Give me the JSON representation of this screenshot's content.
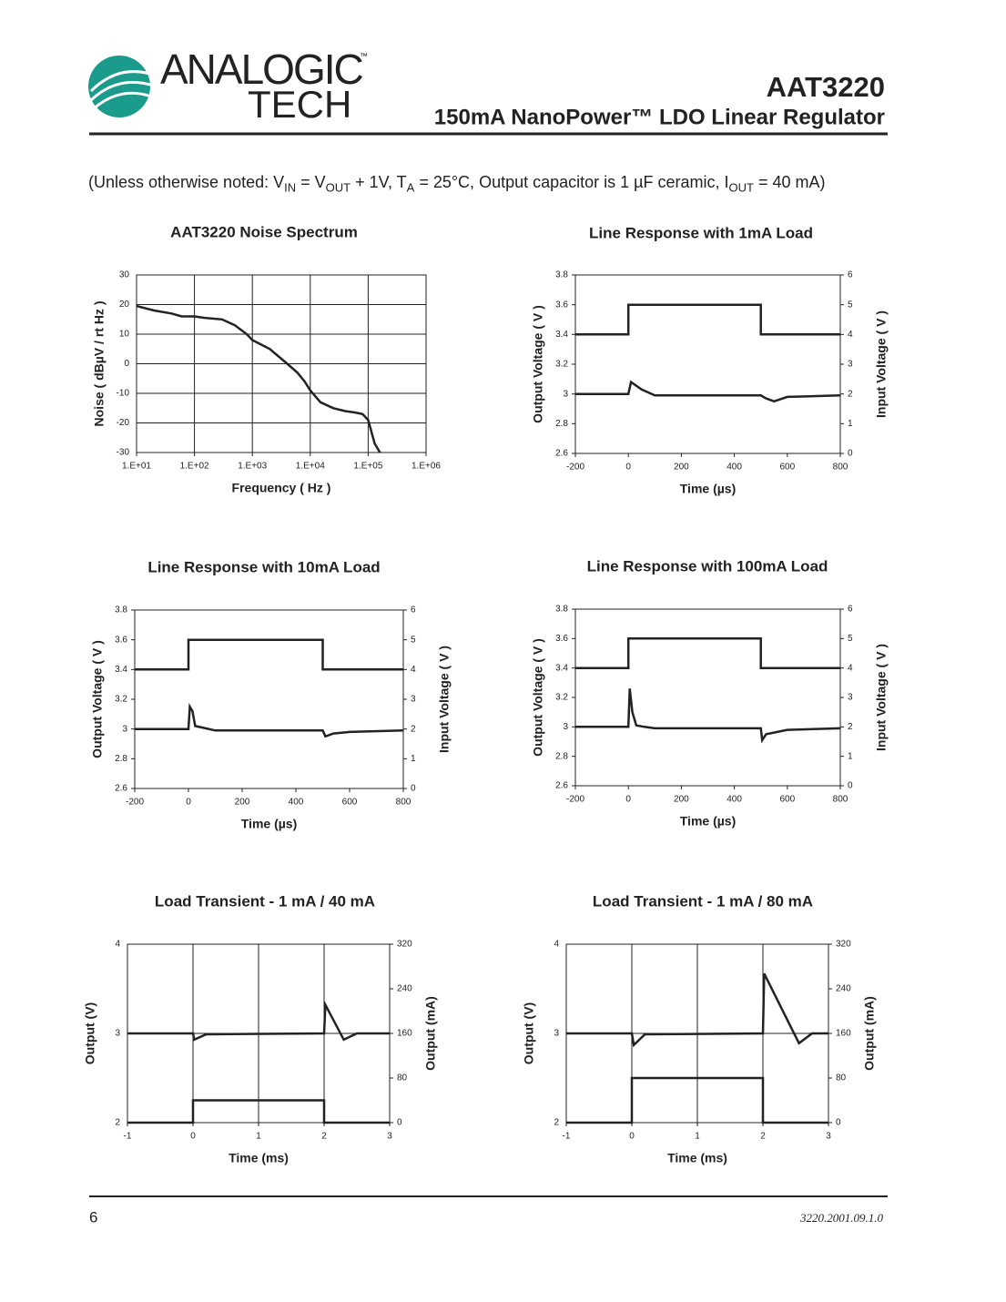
{
  "header": {
    "logo_top": "ANALOGIC",
    "logo_bottom": "TECH",
    "logo_tm": "™",
    "title": "AAT3220",
    "subtitle": "150mA NanoPower™ LDO Linear Regulator"
  },
  "note": [
    "(Unless otherwise noted: V",
    "IN",
    " = V",
    "OUT",
    " + 1V, T",
    "A",
    " = 25°C, Output capacitor is 1 µF ceramic, I",
    "OUT",
    " = 40 mA)"
  ],
  "chart_data": [
    {
      "type": "line",
      "title": "AAT3220 Noise Spectrum",
      "xlabel": "Frequency ( Hz )",
      "ylabel": "Noise ( dBµV / rt Hz )",
      "xscale": "log",
      "grid": true,
      "xlim": [
        10,
        1000000
      ],
      "xticks": [
        {
          "value": 10,
          "label": "1.E+01"
        },
        {
          "value": 100,
          "label": "1.E+02"
        },
        {
          "value": 1000,
          "label": "1.E+03"
        },
        {
          "value": 10000,
          "label": "1.E+04"
        },
        {
          "value": 100000,
          "label": "1.E+05"
        },
        {
          "value": 1000000,
          "label": "1.E+06"
        }
      ],
      "ylim": [
        -30,
        30
      ],
      "yticks": [
        -30,
        -20,
        -10,
        0,
        10,
        20,
        30
      ],
      "series": [
        {
          "color": "#222222",
          "x": [
            10,
            20,
            40,
            60,
            100,
            150,
            300,
            500,
            800,
            1000,
            2000,
            4000,
            6000,
            8000,
            10000,
            15000,
            25000,
            40000,
            60000,
            80000,
            100000,
            130000,
            160000
          ],
          "values": [
            19.5,
            18,
            17,
            16,
            16,
            15.5,
            15,
            13,
            10,
            8,
            5,
            0,
            -3,
            -6,
            -9,
            -13,
            -15,
            -16,
            -16.5,
            -17,
            -19,
            -27,
            -30
          ]
        }
      ]
    },
    {
      "type": "line",
      "title": "Line Response with 1mA Load",
      "xlabel": "Time (µs)",
      "ylabel": "Output Voltage ( V )",
      "y2label": "Input Voltage ( V )",
      "grid": false,
      "xlim": [
        -200,
        800
      ],
      "xticks": [
        -200,
        0,
        200,
        400,
        600,
        800
      ],
      "ylim": [
        2.6,
        3.8
      ],
      "yticks": [
        2.6,
        2.8,
        3,
        3.2,
        3.4,
        3.6,
        3.8
      ],
      "y2lim": [
        0,
        6
      ],
      "y2ticks": [
        0,
        1,
        2,
        3,
        4,
        5,
        6
      ],
      "series": [
        {
          "color": "#222222",
          "x": [
            -200,
            0,
            10,
            50,
            100,
            490,
            500,
            520,
            550,
            600,
            800
          ],
          "values": [
            3,
            3,
            3.08,
            3.03,
            2.99,
            2.99,
            2.99,
            2.97,
            2.95,
            2.98,
            2.99
          ]
        },
        {
          "color": "#222222",
          "axis": "y2",
          "x": [
            -200,
            0,
            0,
            500,
            500,
            800
          ],
          "values": [
            4,
            4,
            5,
            5,
            4,
            4
          ]
        }
      ]
    },
    {
      "type": "line",
      "title": "Line Response with 10mA  Load",
      "xlabel": "Time (µs)",
      "ylabel": "Output Voltage ( V )",
      "y2label": "Input Voltage ( V )",
      "grid": false,
      "xlim": [
        -200,
        800
      ],
      "xticks": [
        -200,
        0,
        200,
        400,
        600,
        800
      ],
      "ylim": [
        2.6,
        3.8
      ],
      "yticks": [
        2.6,
        2.8,
        3,
        3.2,
        3.4,
        3.6,
        3.8
      ],
      "y2lim": [
        0,
        6
      ],
      "y2ticks": [
        0,
        1,
        2,
        3,
        4,
        5,
        6
      ],
      "series": [
        {
          "color": "#222222",
          "x": [
            -200,
            0,
            5,
            15,
            25,
            50,
            100,
            490,
            500,
            510,
            540,
            600,
            800
          ],
          "values": [
            3,
            3,
            3.15,
            3.12,
            3.02,
            3.01,
            2.99,
            2.99,
            2.99,
            2.95,
            2.97,
            2.98,
            2.99
          ]
        },
        {
          "color": "#222222",
          "axis": "y2",
          "x": [
            -200,
            0,
            0,
            500,
            500,
            800
          ],
          "values": [
            4,
            4,
            5,
            5,
            4,
            4
          ]
        }
      ]
    },
    {
      "type": "line",
      "title": "Line Response with 100mA Load",
      "xlabel": "Time (µs)",
      "ylabel": "Output Voltage ( V )",
      "y2label": "Input Voltage ( V )",
      "grid": false,
      "xlim": [
        -200,
        800
      ],
      "xticks": [
        -200,
        0,
        200,
        400,
        600,
        800
      ],
      "ylim": [
        2.6,
        3.8
      ],
      "yticks": [
        2.6,
        2.8,
        3,
        3.2,
        3.4,
        3.6,
        3.8
      ],
      "y2lim": [
        0,
        6
      ],
      "y2ticks": [
        0,
        1,
        2,
        3,
        4,
        5,
        6
      ],
      "series": [
        {
          "color": "#222222",
          "x": [
            -200,
            0,
            5,
            15,
            30,
            60,
            100,
            490,
            500,
            505,
            520,
            600,
            800
          ],
          "values": [
            3,
            3,
            3.26,
            3.1,
            3.01,
            3,
            2.99,
            2.99,
            2.99,
            2.91,
            2.95,
            2.98,
            2.99
          ]
        },
        {
          "color": "#222222",
          "axis": "y2",
          "x": [
            -200,
            0,
            0,
            500,
            500,
            800
          ],
          "values": [
            4,
            4,
            5,
            5,
            4,
            4
          ]
        }
      ]
    },
    {
      "type": "line",
      "title": "Load Transient - 1 mA / 40 mA",
      "xlabel": "Time (ms)",
      "ylabel": "Output (V)",
      "y2label": "Output (mA)",
      "grid": true,
      "xlim": [
        -1,
        3
      ],
      "xticks": [
        -1,
        0,
        1,
        2,
        3
      ],
      "ylim": [
        2,
        4
      ],
      "yticks": [
        2,
        3,
        4
      ],
      "y2lim": [
        0,
        320
      ],
      "y2ticks": [
        0,
        80,
        160,
        240,
        320
      ],
      "series": [
        {
          "color": "#222222",
          "x": [
            -1,
            0,
            0.02,
            0.2,
            2,
            2.02,
            2.3,
            2.5,
            3
          ],
          "values": [
            3,
            3,
            2.93,
            2.99,
            3,
            3.32,
            2.93,
            3,
            3
          ]
        },
        {
          "color": "#222222",
          "axis": "y2",
          "x": [
            -1,
            0,
            0,
            2,
            2,
            3
          ],
          "values": [
            0,
            0,
            40,
            40,
            0,
            0
          ]
        }
      ]
    },
    {
      "type": "line",
      "title": "Load Transient - 1 mA / 80 mA",
      "xlabel": "Time (ms)",
      "ylabel": "Output (V)",
      "y2label": "Output (mA)",
      "grid": true,
      "xlim": [
        -1,
        3
      ],
      "xticks": [
        -1,
        0,
        1,
        2,
        3
      ],
      "ylim": [
        2,
        4
      ],
      "yticks": [
        2,
        3,
        4
      ],
      "y2lim": [
        0,
        320
      ],
      "y2ticks": [
        0,
        80,
        160,
        240,
        320
      ],
      "series": [
        {
          "color": "#222222",
          "x": [
            -1,
            0,
            0.03,
            0.2,
            2,
            2.02,
            2.55,
            2.75,
            3
          ],
          "values": [
            3,
            3,
            2.87,
            2.99,
            3,
            3.67,
            2.89,
            3,
            3
          ]
        },
        {
          "color": "#222222",
          "axis": "y2",
          "x": [
            -1,
            0,
            0,
            2,
            2,
            3
          ],
          "values": [
            0,
            0,
            80,
            80,
            0,
            0
          ]
        }
      ]
    }
  ],
  "footer": {
    "page": "6",
    "code": "3220.2001.09.1.0"
  }
}
